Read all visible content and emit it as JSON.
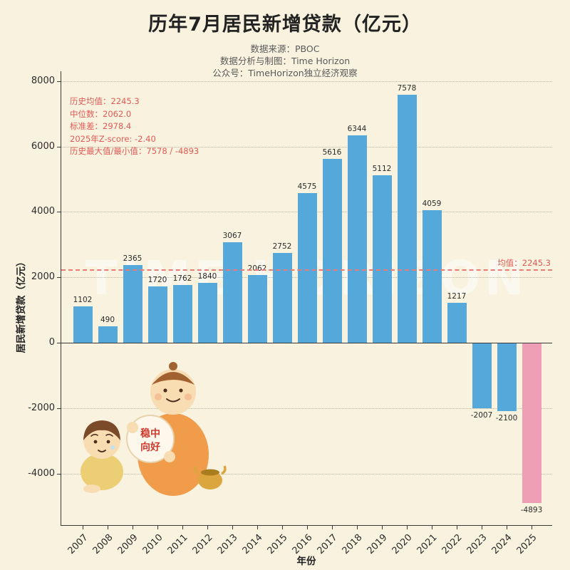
{
  "title": "历年7月居民新增贷款（亿元）",
  "subtitles": [
    "数据来源：PBOC",
    "数据分析与制图：Time Horizon",
    "公众号：TimeHorizon独立经济观察"
  ],
  "stats_box": [
    "历史均值：2245.3",
    "中位数：2062.0",
    "标准差：2978.4",
    "2025年Z-score: -2.40",
    "历史最大值/最小值：7578 / -4893"
  ],
  "mean_line_label": "均值：2245.3",
  "watermark": "TIME HORIZON",
  "mascot": {
    "sign_line1": "稳中",
    "sign_line2": "向好"
  },
  "colors": {
    "background": "#f8f2df",
    "bar_blue": "#55a9da",
    "bar_pink": "#ee9fb6",
    "stats_red": "#e25a56",
    "mean_line_red": "#e87a78",
    "axis_dark": "#3a3a3a"
  },
  "chart_data": {
    "type": "bar",
    "title": "历年7月居民新增贷款（亿元）",
    "xlabel": "年份",
    "ylabel": "居民新增贷款（亿元）",
    "categories": [
      "2007",
      "2008",
      "2009",
      "2010",
      "2011",
      "2012",
      "2013",
      "2014",
      "2015",
      "2016",
      "2017",
      "2018",
      "2019",
      "2020",
      "2021",
      "2022",
      "2023",
      "2024",
      "2025"
    ],
    "values": [
      1102,
      490,
      2365,
      1720,
      1762,
      1840,
      3067,
      2062,
      2752,
      4575,
      5616,
      6344,
      5112,
      7578,
      4059,
      1217,
      -2007,
      -2100,
      -4893
    ],
    "ylim": [
      -5600,
      8300
    ],
    "yticks": [
      8000,
      6000,
      4000,
      2000,
      0,
      -2000,
      -4000
    ],
    "mean": 2245.3,
    "median": 2062.0,
    "std": 2978.4,
    "z_score_2025": -2.4,
    "max": 7578,
    "min": -4893,
    "bar_color": "#55a9da",
    "highlight_color": "#ee9fb6",
    "highlight_category": "2025",
    "grid": true,
    "legend": false,
    "mean_line": true
  }
}
